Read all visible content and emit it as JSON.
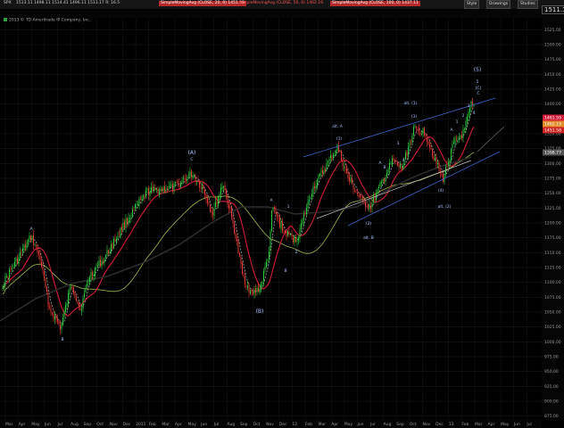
{
  "toolbar": {
    "symbol": "SPX",
    "ohlc": "1513.11  1498.11  1514.41  1496.11  1513.17  R: 16.5",
    "ma1": "SimpleMovingAvg (CLOSE, 20, 0)  1451.58",
    "ma2": "SimpleMovingAvg (CLOSE, 50, 0)  1462.19",
    "ma3": "SimpleMovingAvg (CLOSE, 100, 0)  1437.11",
    "style_button": "Style",
    "drawings_button": "Drawings",
    "studies_button": "Studies",
    "last_price": "1511.17"
  },
  "copyright": "2013 © TD Ameritrade IP Company, Inc.",
  "colors": {
    "background": "#000000",
    "candle_up": "#2ecc40",
    "candle_down": "#e53935",
    "ma_fast": "#e8e8e8",
    "ma_20": "#d31d3a",
    "ma_50": "#9bbb4a",
    "ma_200": "#2a2a2a",
    "channel": "#3f63c8",
    "ma_fast_line": "#d8d8d8",
    "channel_upper_light": "#6b6b6b"
  },
  "chart_data": {
    "type": "candlestick",
    "y_axis": {
      "labels": [
        "1525.00",
        "1500.00",
        "1475.00",
        "1450.00",
        "1425.00",
        "1400.00",
        "1375.00",
        "1350.00",
        "1325.00",
        "1300.00",
        "1275.00",
        "1250.00",
        "1225.00",
        "1200.00",
        "1175.00",
        "1150.00",
        "1125.00",
        "1100.00",
        "1075.00",
        "1050.00",
        "1025.00",
        "1000.00",
        "975.00",
        "950.00",
        "925.00",
        "900.00",
        "875.00"
      ],
      "min": 870,
      "max": 1545
    },
    "x_axis": {
      "labels": [
        "Mar",
        "Apr",
        "May",
        "Jun",
        "Jul",
        "Aug",
        "Sep",
        "Oct",
        "Nov",
        "Dec",
        "2011",
        "Feb",
        "Mar",
        "Apr",
        "May",
        "Jun",
        "Jul",
        "Aug",
        "Sep",
        "Oct",
        "Nov",
        "Dec",
        "12",
        "Feb",
        "Mar",
        "Apr",
        "May",
        "Jun",
        "Jul",
        "Aug",
        "Sep",
        "Oct",
        "Nov",
        "Dec",
        "13",
        "Feb",
        "Mar",
        "Apr",
        "May",
        "Jun",
        "Jul"
      ]
    },
    "price_tags": [
      {
        "value": "1461.59",
        "color": "#d31d3a"
      },
      {
        "value": "1462.19",
        "color": "#e58a2b"
      },
      {
        "value": "1451.58",
        "color": "#c22"
      },
      {
        "value": "1398.77",
        "color": "#555"
      }
    ],
    "wave_labels": [
      "A",
      "B",
      "(A)",
      "C",
      "(B)",
      "A",
      "1",
      "2",
      "B",
      "alt. A",
      "(1)",
      "alt. B",
      "(2)",
      "A",
      "B",
      "3",
      "4",
      "(3)",
      "alt. (1)",
      "(4)",
      "alt. (2)",
      "A",
      "1",
      "2",
      "3",
      "4",
      "5",
      "(5)",
      "(C)",
      "C",
      "5"
    ]
  }
}
